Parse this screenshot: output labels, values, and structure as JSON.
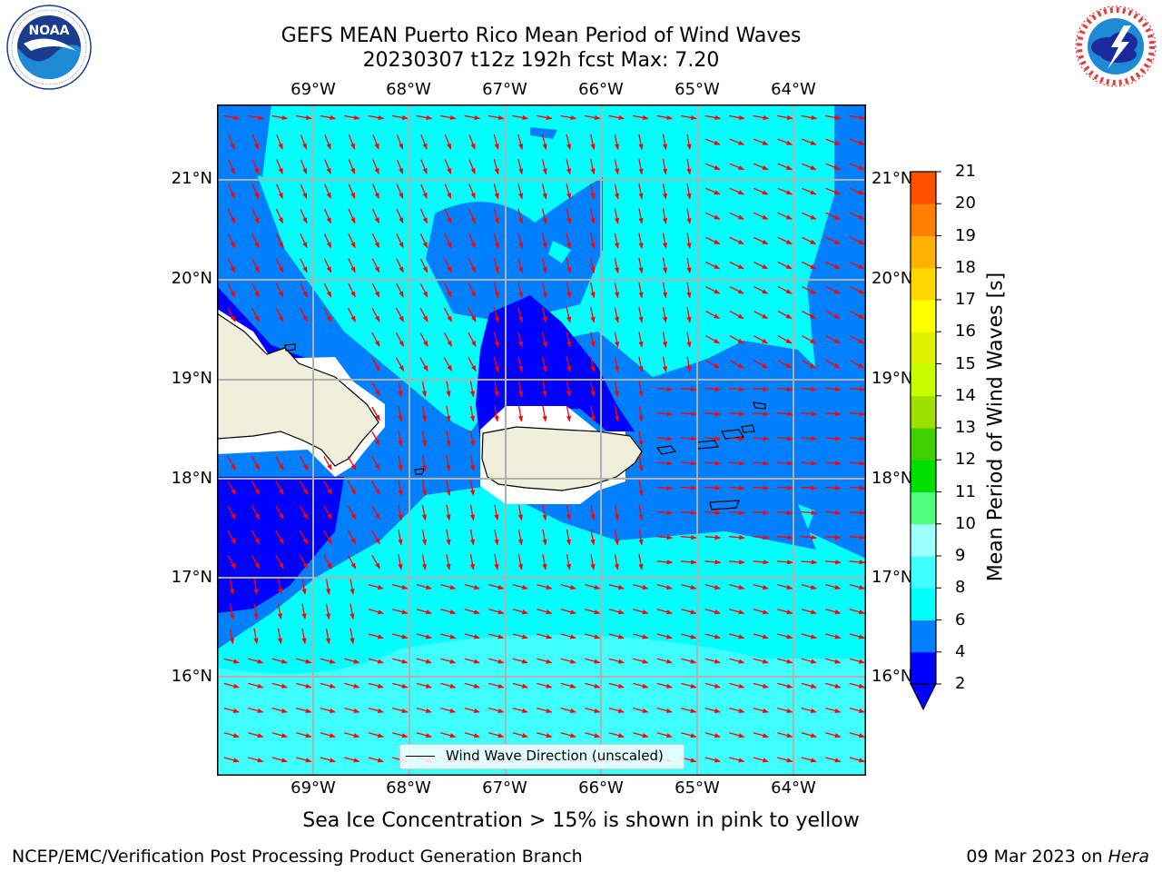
{
  "header": {
    "title_line1": "GEFS MEAN Puerto Rico Mean Period of Wind Waves",
    "title_line2": "20230307 t12z 192h fcst   Max: 7.20"
  },
  "logos": {
    "left": {
      "name": "NOAA",
      "text": "NOAA",
      "ring_text": "NATIONAL OCEANIC AND ATMOSPHERIC ADMINISTRATION · U.S. DEPARTMENT OF COMMERCE"
    },
    "right": {
      "name": "National Weather Service",
      "ring_text": "NATIONAL WEATHER SERVICE"
    }
  },
  "map": {
    "lon_labels": [
      "69°W",
      "68°W",
      "67°W",
      "66°W",
      "65°W",
      "64°W"
    ],
    "lat_labels": [
      "21°N",
      "20°N",
      "19°N",
      "18°N",
      "17°N",
      "16°N"
    ],
    "lon_range": [
      -70.0,
      -63.25
    ],
    "lat_range": [
      15.0,
      21.75
    ],
    "legend_label": "Wind Wave Direction (unscaled)",
    "arrow_color": "#ff0000",
    "land_color": "#efefdc"
  },
  "colorbar": {
    "label": "Mean Period of Wind Waves [s]",
    "ticks": [
      "2",
      "4",
      "6",
      "8",
      "9",
      "10",
      "11",
      "12",
      "13",
      "14",
      "15",
      "16",
      "17",
      "18",
      "19",
      "20",
      "21"
    ],
    "colors": [
      "#0000ff",
      "#0080ff",
      "#00ffff",
      "#40ffff",
      "#a0ffff",
      "#50ff80",
      "#00e000",
      "#40d000",
      "#a0e000",
      "#c8ff00",
      "#e0f000",
      "#ffff00",
      "#ffd700",
      "#ffb000",
      "#ff8000",
      "#ff5000",
      "#ff2000",
      "#ff0000"
    ],
    "under_color": "#0000ff"
  },
  "caption": "Sea Ice Concentration > 15% is shown in pink to yellow",
  "footer": {
    "left": "NCEP/EMC/Verification Post Processing Product Generation Branch",
    "right_prefix": "09 Mar 2023 on ",
    "right_machine": "Hera"
  }
}
